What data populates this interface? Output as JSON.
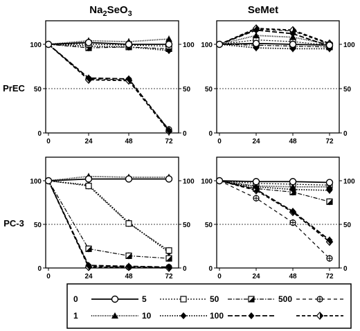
{
  "columns": [
    "Na2SeO3",
    "SeMet"
  ],
  "rows": [
    "PrEC",
    "PC-3"
  ],
  "legend": [
    {
      "label": "0",
      "dash": "",
      "marker": "open-circle",
      "thick": true
    },
    {
      "label": "5",
      "dash": "2 2",
      "marker": "open-square",
      "thick": false
    },
    {
      "label": "50",
      "dash": "6 2 1.5 2",
      "marker": "half-square",
      "thick": false
    },
    {
      "label": "500",
      "dash": "5 4",
      "marker": "crossed-circle",
      "thick": false
    },
    {
      "label": "1",
      "dash": "1 1.5",
      "marker": "filled-triangle",
      "thick": true
    },
    {
      "label": "10",
      "dash": "1.5 2",
      "marker": "filled-diamond",
      "thick": true
    },
    {
      "label": "100",
      "dash": "7 3",
      "marker": "filled-diamond",
      "thick": true
    },
    {
      "label": "",
      "dash": "5 3",
      "marker": "half-diamond",
      "thick": true
    }
  ],
  "chart_data": [
    {
      "type": "line",
      "title": "Na2SeO3",
      "row_label": "PrEC",
      "x": [
        0,
        24,
        48,
        72
      ],
      "ylim": [
        0,
        100
      ],
      "yticks": [
        0,
        50,
        100
      ],
      "series": [
        {
          "name": "0",
          "values": [
            100,
            102,
            100,
            100
          ]
        },
        {
          "name": "1",
          "values": [
            100,
            104,
            103,
            106
          ]
        },
        {
          "name": "5",
          "values": [
            100,
            100,
            99,
            98
          ]
        },
        {
          "name": "10",
          "values": [
            100,
            98,
            97,
            93
          ]
        },
        {
          "name": "50",
          "values": [
            100,
            96,
            97,
            95
          ]
        },
        {
          "name": "100",
          "values": [
            100,
            62,
            61,
            3
          ]
        },
        {
          "name": "500",
          "values": [
            100,
            61,
            60,
            4
          ]
        },
        {
          "name": "",
          "values": [
            100,
            60,
            59,
            2
          ]
        }
      ]
    },
    {
      "type": "line",
      "title": "SeMet",
      "row_label": "PrEC",
      "x": [
        0,
        24,
        48,
        72
      ],
      "ylim": [
        0,
        100
      ],
      "yticks": [
        0,
        50,
        100
      ],
      "series": [
        {
          "name": "0",
          "values": [
            100,
            101,
            100,
            99
          ]
        },
        {
          "name": "1",
          "values": [
            100,
            110,
            108,
            100
          ]
        },
        {
          "name": "5",
          "values": [
            100,
            105,
            103,
            99
          ]
        },
        {
          "name": "10",
          "values": [
            100,
            96,
            95,
            95
          ]
        },
        {
          "name": "50",
          "values": [
            100,
            99,
            98,
            97
          ]
        },
        {
          "name": "100",
          "values": [
            100,
            116,
            112,
            98
          ]
        },
        {
          "name": "500",
          "values": [
            100,
            117,
            115,
            100
          ]
        },
        {
          "name": "",
          "values": [
            100,
            118,
            116,
            101
          ]
        }
      ]
    },
    {
      "type": "line",
      "title": "Na2SeO3",
      "row_label": "PC-3",
      "x": [
        0,
        24,
        48,
        72
      ],
      "ylim": [
        0,
        100
      ],
      "yticks": [
        0,
        50,
        100
      ],
      "series": [
        {
          "name": "0",
          "values": [
            100,
            102,
            102,
            102
          ]
        },
        {
          "name": "1",
          "values": [
            100,
            105,
            104,
            104
          ]
        },
        {
          "name": "5",
          "values": [
            100,
            94,
            51,
            20
          ]
        },
        {
          "name": "10",
          "values": [
            100,
            95,
            52,
            18
          ]
        },
        {
          "name": "50",
          "values": [
            100,
            22,
            14,
            11
          ]
        },
        {
          "name": "100",
          "values": [
            100,
            3,
            2,
            1
          ]
        },
        {
          "name": "500",
          "values": [
            100,
            2,
            1,
            1
          ]
        },
        {
          "name": "",
          "values": [
            100,
            1,
            1,
            0
          ]
        }
      ]
    },
    {
      "type": "line",
      "title": "SeMet",
      "row_label": "PC-3",
      "x": [
        0,
        24,
        48,
        72
      ],
      "ylim": [
        0,
        100
      ],
      "yticks": [
        0,
        50,
        100
      ],
      "series": [
        {
          "name": "0",
          "values": [
            100,
            99,
            99,
            98
          ]
        },
        {
          "name": "1",
          "values": [
            100,
            94,
            93,
            93
          ]
        },
        {
          "name": "5",
          "values": [
            100,
            97,
            96,
            95
          ]
        },
        {
          "name": "10",
          "values": [
            100,
            93,
            90,
            89
          ]
        },
        {
          "name": "50",
          "values": [
            100,
            91,
            87,
            76
          ]
        },
        {
          "name": "100",
          "values": [
            100,
            90,
            65,
            32
          ]
        },
        {
          "name": "500",
          "values": [
            100,
            80,
            52,
            11
          ]
        },
        {
          "name": "",
          "values": [
            100,
            89,
            64,
            30
          ]
        }
      ]
    }
  ]
}
